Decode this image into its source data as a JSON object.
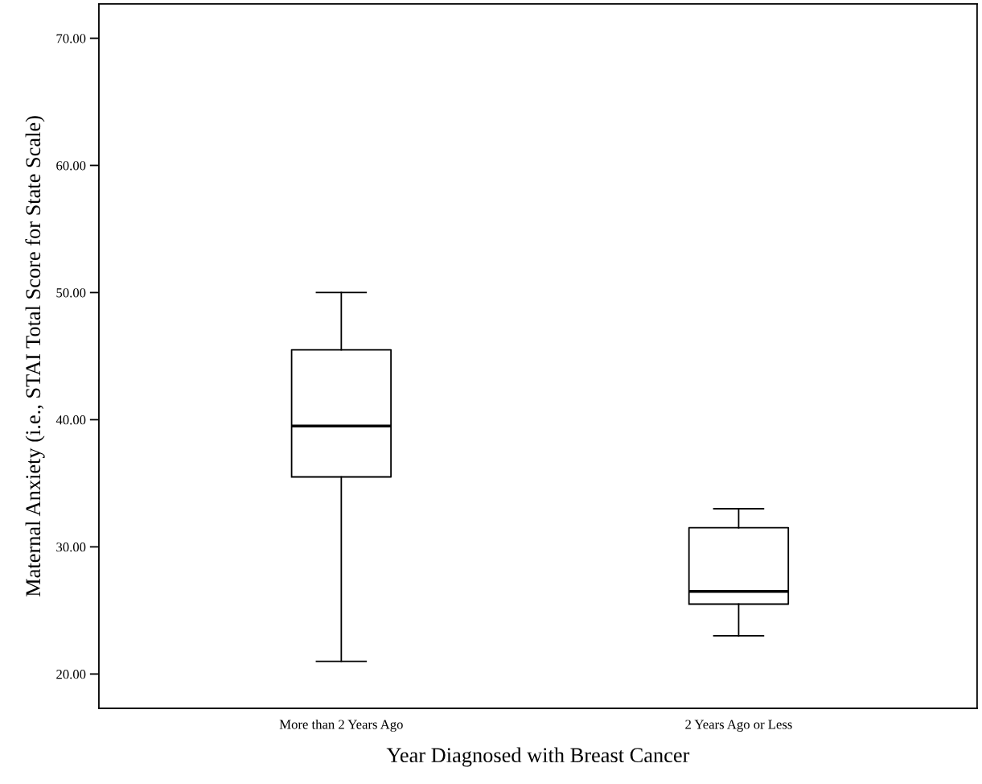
{
  "chart_data": {
    "type": "box",
    "xlabel": "Year Diagnosed with Breast Cancer",
    "ylabel": "Maternal Anxiety (i.e., STAI Total Score for State Scale)",
    "categories": [
      "More than 2 Years Ago",
      "2 Years Ago or Less"
    ],
    "boxes": [
      {
        "low": 21,
        "q1": 35.5,
        "median": 39.5,
        "q3": 45.5,
        "high": 50
      },
      {
        "low": 23,
        "q1": 25.5,
        "median": 26.5,
        "q3": 31.5,
        "high": 33
      }
    ],
    "ylim": [
      17.3,
      72.7
    ],
    "yticks": [
      {
        "value": 20,
        "label": "20.00"
      },
      {
        "value": 30,
        "label": "30.00"
      },
      {
        "value": 40,
        "label": "40.00"
      },
      {
        "value": 50,
        "label": "50.00"
      },
      {
        "value": 60,
        "label": "60.00"
      },
      {
        "value": 70,
        "label": "70.00"
      }
    ],
    "grid": false,
    "legend": false
  }
}
